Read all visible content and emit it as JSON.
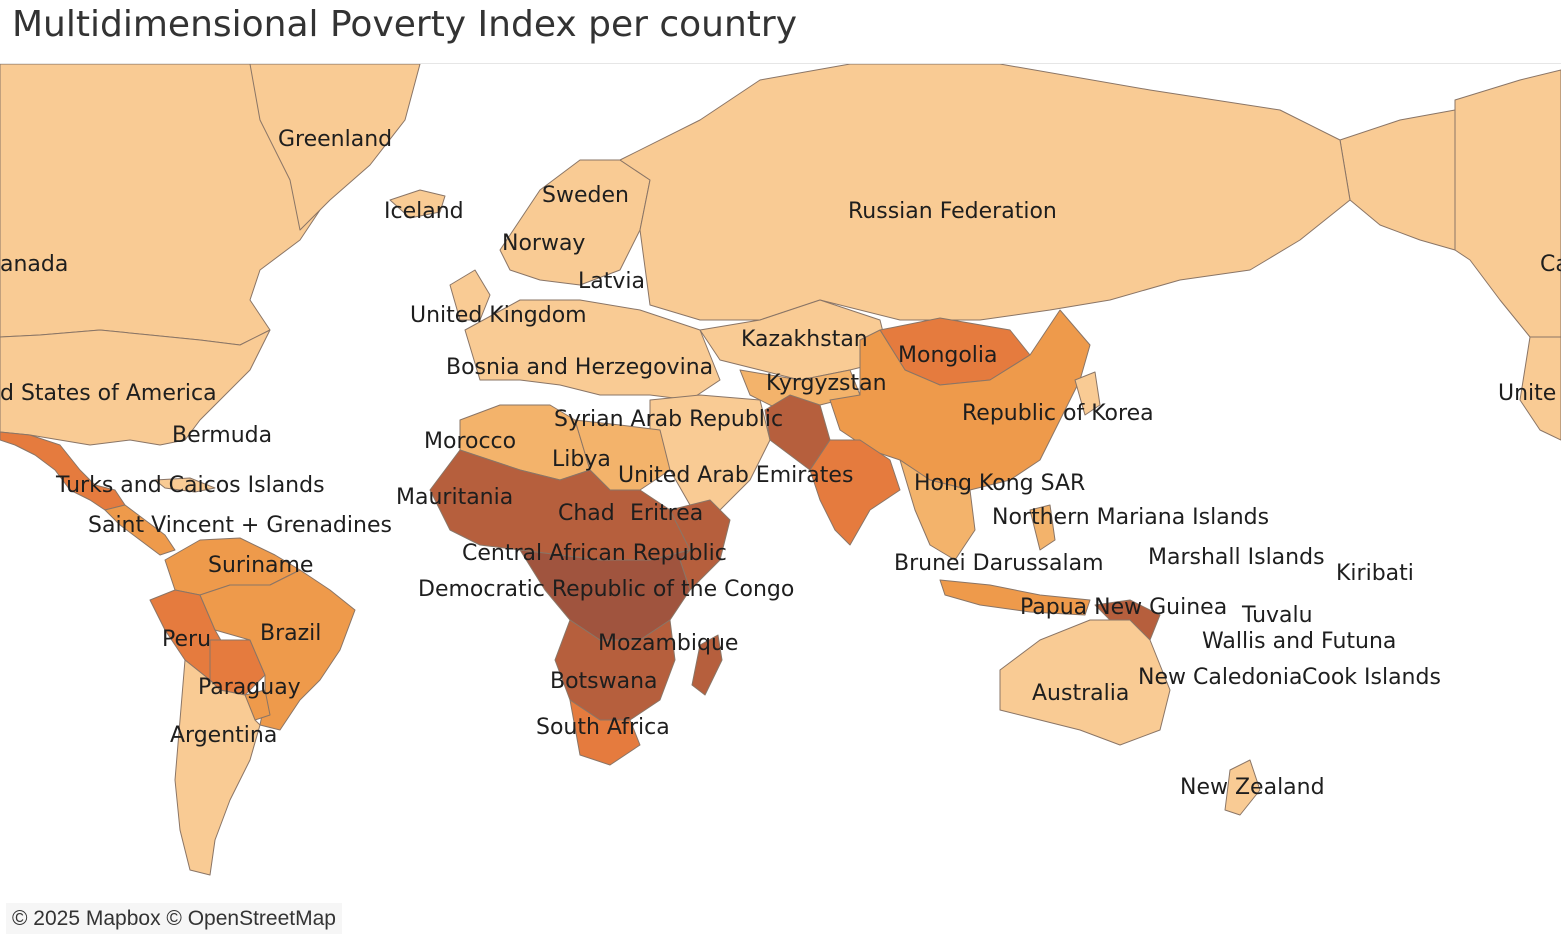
{
  "title": "Multidimensional Poverty Index per country",
  "attribution": "© 2025 Mapbox © OpenStreetMap",
  "legend_colors": {
    "very_low": "#f9cb94",
    "low": "#f3b36b",
    "medium": "#ee9a4b",
    "high": "#e57b3e",
    "very_high": "#b65f3d",
    "extreme": "#a0543e"
  },
  "labels": {
    "greenland": "Greenland",
    "iceland": "Iceland",
    "sweden": "Sweden",
    "norway": "Norway",
    "latvia": "Latvia",
    "russia": "Russian Federation",
    "canada": "anada",
    "canada_right": "Ca",
    "united_kingdom": "United Kingdom",
    "kazakhstan": "Kazakhstan",
    "mongolia": "Mongolia",
    "bosnia": "Bosnia and Herzegovina",
    "kyrgyzstan": "Kyrgyzstan",
    "usa": "d States of America",
    "usa_right": "Unite",
    "republic_korea": "Republic of Korea",
    "syria": "Syrian Arab Republic",
    "bermuda": "Bermuda",
    "morocco": "Morocco",
    "libya": "Libya",
    "uae": "United Arab Emirates",
    "turks_caicos": "Turks and Caicos Islands",
    "hong_kong": "Hong Kong SAR",
    "mauritania": "Mauritania",
    "chad": "Chad",
    "eritrea": "Eritrea",
    "northern_mariana": "Northern Mariana Islands",
    "saint_vincent": "Saint Vincent + Grenadines",
    "car": "Central African Republic",
    "brunei": "Brunei Darussalam",
    "marshall_islands": "Marshall Islands",
    "suriname": "Suriname",
    "kiribati": "Kiribati",
    "drc": "Democratic Republic of the Congo",
    "papua_new_guinea": "Papua New Guinea",
    "tuvalu": "Tuvalu",
    "peru": "Peru",
    "brazil": "Brazil",
    "mozambique": "Mozambique",
    "wallis_futuna": "Wallis and Futuna",
    "paraguay": "Paraguay",
    "botswana": "Botswana",
    "australia": "Australia",
    "new_caledonia": "New Caledonia",
    "cook_islands": "Cook Islands",
    "south_africa": "South Africa",
    "argentina": "Argentina",
    "new_zealand": "New Zealand"
  }
}
